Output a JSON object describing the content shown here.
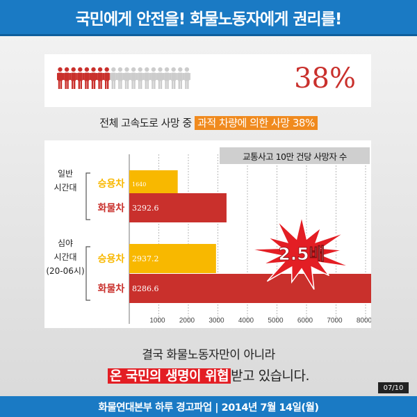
{
  "header": {
    "title": "국민에게 안전을! 화물노동자에게 권리를!"
  },
  "people": {
    "total": 20,
    "highlighted": 7.6,
    "percent_label": "38%",
    "colors": {
      "on": "#c9302c",
      "off": "#cccccc"
    }
  },
  "stat": {
    "prefix": "전체 고속도로 사망 중 ",
    "highlight": "과적 차량에 의한 사망 38%"
  },
  "chart_data": {
    "type": "bar",
    "orientation": "horizontal",
    "title": "교통사고 10만 건당 사망자 수",
    "xlim": [
      0,
      8000
    ],
    "xticks": [
      1000,
      2000,
      3000,
      4000,
      5000,
      6000,
      7000,
      8000
    ],
    "grid": true,
    "groups": [
      {
        "label": "일반 시간대",
        "bars": [
          {
            "label": "승용차",
            "value": 1640,
            "value_label": "1640",
            "color": "#f8b800"
          },
          {
            "label": "화물차",
            "value": 3292.6,
            "value_label": "3292.6",
            "color": "#c9302c"
          }
        ]
      },
      {
        "label": "심야 시간대 (20-06시)",
        "bars": [
          {
            "label": "승용차",
            "value": 2937.2,
            "value_label": "2937.2",
            "color": "#f8b800"
          },
          {
            "label": "화물차",
            "value": 8286.6,
            "value_label": "8286.6",
            "color": "#c9302c"
          }
        ]
      }
    ],
    "annotation": "2.5배"
  },
  "bottom": {
    "line1": "결국 화물노동자만이 아니라",
    "line2_highlight": "온 국민의 생명이 위협",
    "line2_rest": "받고 있습니다."
  },
  "page": "07/10",
  "footer": "화물연대본부 하루 경고파업 | 2014년 7월 14일(월)"
}
